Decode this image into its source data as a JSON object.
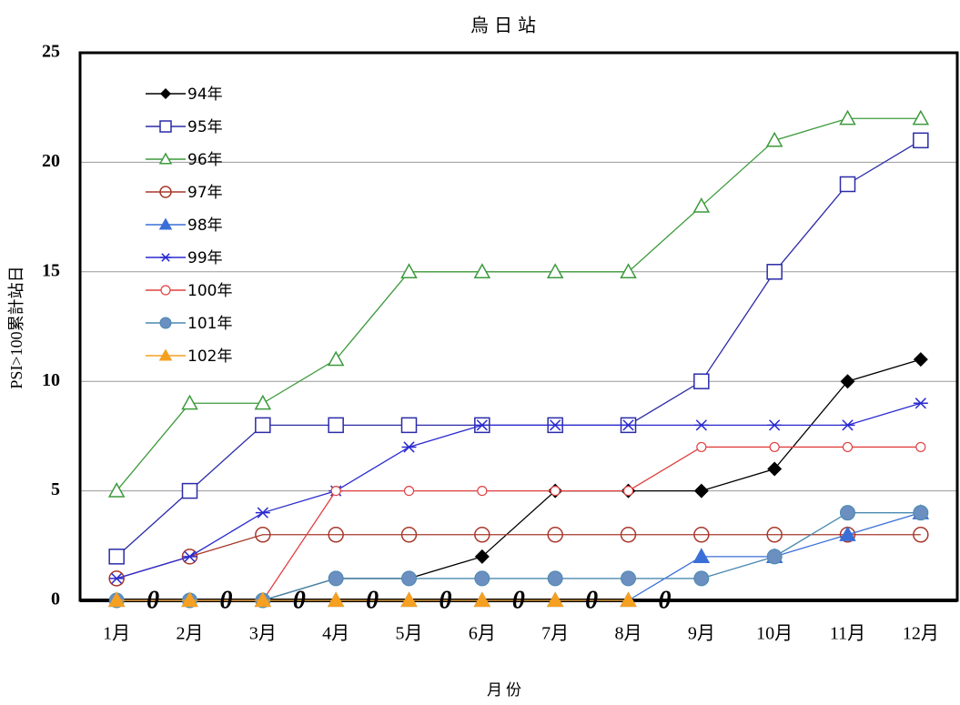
{
  "chart_data": {
    "type": "line",
    "title": "烏日站",
    "x_label": "月份",
    "y_label": "PSI>100累計站日",
    "categories": [
      "1月",
      "2月",
      "3月",
      "4月",
      "5月",
      "6月",
      "7月",
      "8月",
      "9月",
      "10月",
      "11月",
      "12月"
    ],
    "ylim": [
      0,
      25
    ],
    "yticks": [
      0,
      5,
      10,
      15,
      20,
      25
    ],
    "grid": true,
    "legend": "upper-left",
    "series": [
      {
        "name": "94年",
        "color": "#000000",
        "marker": "diamond",
        "values": [
          0,
          0,
          0,
          1,
          1,
          2,
          5,
          5,
          5,
          6,
          10,
          11
        ]
      },
      {
        "name": "95年",
        "color": "#2b2ba8",
        "marker": "square-open",
        "values": [
          2,
          5,
          8,
          8,
          8,
          8,
          8,
          8,
          10,
          15,
          19,
          21
        ]
      },
      {
        "name": "96年",
        "color": "#3c9a3c",
        "marker": "triangle-open",
        "values": [
          5,
          9,
          9,
          11,
          15,
          15,
          15,
          15,
          18,
          21,
          22,
          22
        ]
      },
      {
        "name": "97年",
        "color": "#a8382c",
        "marker": "circle-open",
        "values": [
          1,
          2,
          3,
          3,
          3,
          3,
          3,
          3,
          3,
          3,
          3,
          3
        ]
      },
      {
        "name": "98年",
        "color": "#3a6fd8",
        "marker": "triangle",
        "values": [
          0,
          0,
          0,
          0,
          0,
          0,
          0,
          0,
          2,
          2,
          3,
          4
        ]
      },
      {
        "name": "99年",
        "color": "#2a2ad0",
        "marker": "star",
        "values": [
          1,
          2,
          4,
          5,
          7,
          8,
          8,
          8,
          8,
          8,
          8,
          9
        ]
      },
      {
        "name": "100年",
        "color": "#e04040",
        "marker": "small-circle-open",
        "values": [
          0,
          0,
          0,
          5,
          5,
          5,
          5,
          5,
          7,
          7,
          7,
          7
        ]
      },
      {
        "name": "101年",
        "color": "#4a8ab0",
        "marker": "circle",
        "values": [
          0,
          0,
          0,
          1,
          1,
          1,
          1,
          1,
          1,
          2,
          4,
          4
        ]
      },
      {
        "name": "102年",
        "color": "#f5a020",
        "marker": "triangle",
        "values": [
          0,
          0,
          0,
          0,
          0,
          0,
          0,
          0,
          null,
          null,
          null,
          null
        ]
      }
    ]
  }
}
